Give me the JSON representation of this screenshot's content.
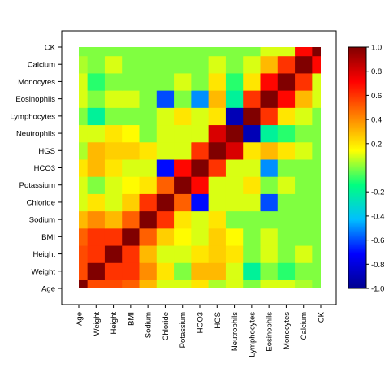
{
  "chart_data": {
    "type": "heatmap",
    "title": "",
    "xlabel": "",
    "ylabel": "",
    "variables": [
      "Age",
      "Weight",
      "Height",
      "BMI",
      "Sodium",
      "Chloride",
      "Potassium",
      "HCO3",
      "HGS",
      "Neutrophils",
      "Lymphocytes",
      "Eosinophils",
      "Monocytes",
      "Calcium",
      "CK"
    ],
    "x_tick_labels": [
      "Age",
      "Weight",
      "Height",
      "BMI",
      "Sodium",
      "Chloride",
      "Potassium",
      "HCO3",
      "HGS",
      "Neutrophils",
      "Lymphocytes",
      "Eosinophils",
      "Monocytes",
      "Calcium",
      "CK"
    ],
    "y_tick_labels": [
      "Age",
      "Weight",
      "Height",
      "BMI",
      "Sodium",
      "Chloride",
      "Potassium",
      "HCO3",
      "HGS",
      "Neutrophils",
      "Lymphocytes",
      "Eosinophils",
      "Monocytes",
      "Calcium",
      "CK"
    ],
    "matrix": [
      [
        1.0,
        0.55,
        0.55,
        0.5,
        0.3,
        0.1,
        0.1,
        0.2,
        0.05,
        0.1,
        0.0,
        0.1,
        0.1,
        0.05,
        0.0
      ],
      [
        0.55,
        1.0,
        0.6,
        0.6,
        0.4,
        0.2,
        0.0,
        0.3,
        0.3,
        0.1,
        -0.2,
        0.0,
        -0.1,
        0.0,
        0.0
      ],
      [
        0.55,
        0.6,
        1.0,
        0.6,
        0.3,
        0.1,
        0.1,
        0.2,
        0.25,
        0.2,
        0.0,
        0.1,
        0.0,
        0.1,
        0.0
      ],
      [
        0.5,
        0.6,
        0.6,
        1.0,
        0.5,
        0.25,
        0.15,
        0.1,
        0.25,
        0.15,
        0.0,
        0.1,
        0.0,
        0.0,
        0.0
      ],
      [
        0.3,
        0.4,
        0.3,
        0.5,
        1.0,
        0.6,
        0.2,
        0.1,
        0.2,
        0.0,
        0.0,
        0.0,
        0.0,
        0.0,
        0.0
      ],
      [
        0.1,
        0.2,
        0.1,
        0.25,
        0.6,
        1.0,
        0.5,
        -0.7,
        0.1,
        0.1,
        0.1,
        -0.6,
        0.0,
        0.0,
        0.0
      ],
      [
        0.1,
        0.0,
        0.1,
        0.15,
        0.2,
        0.5,
        1.0,
        0.7,
        0.1,
        0.1,
        0.2,
        0.0,
        0.1,
        0.0,
        0.0
      ],
      [
        0.2,
        0.3,
        0.2,
        0.1,
        0.1,
        -0.7,
        0.7,
        1.0,
        0.6,
        0.1,
        0.1,
        -0.5,
        0.0,
        0.0,
        0.0
      ],
      [
        0.05,
        0.3,
        0.25,
        0.25,
        0.2,
        0.1,
        0.1,
        0.6,
        1.0,
        0.8,
        0.2,
        0.3,
        0.2,
        0.1,
        0.0
      ],
      [
        0.1,
        0.1,
        0.2,
        0.15,
        0.0,
        0.1,
        0.1,
        0.1,
        0.8,
        1.0,
        -0.9,
        -0.2,
        -0.1,
        0.0,
        0.0
      ],
      [
        0.0,
        -0.2,
        0.0,
        0.0,
        0.0,
        0.1,
        0.2,
        0.1,
        0.2,
        -0.9,
        1.0,
        0.6,
        0.2,
        0.1,
        0.0
      ],
      [
        0.1,
        0.0,
        0.1,
        0.1,
        0.0,
        -0.6,
        0.0,
        -0.5,
        0.3,
        -0.2,
        0.6,
        1.0,
        0.7,
        0.3,
        0.1
      ],
      [
        0.1,
        -0.1,
        0.0,
        0.0,
        0.0,
        0.0,
        0.1,
        0.0,
        0.2,
        -0.1,
        0.2,
        0.7,
        1.0,
        0.6,
        0.1
      ],
      [
        0.05,
        0.0,
        0.1,
        0.0,
        0.0,
        0.0,
        0.0,
        0.0,
        0.1,
        0.0,
        0.1,
        0.3,
        0.6,
        1.0,
        0.7
      ],
      [
        0.0,
        0.0,
        0.0,
        0.0,
        0.0,
        0.0,
        0.0,
        0.0,
        0.0,
        0.0,
        0.0,
        0.1,
        0.1,
        0.7,
        1.0
      ]
    ],
    "colorbar": {
      "min": -1.0,
      "max": 1.0,
      "ticks": [
        "1.0",
        "0.8",
        "0.6",
        "0.4",
        "0.2",
        "-0.2",
        "-0.4",
        "-0.6",
        "-0.8",
        "-1.0"
      ],
      "tick_values": [
        1.0,
        0.8,
        0.6,
        0.4,
        0.2,
        -0.2,
        -0.4,
        -0.6,
        -0.8,
        -1.0
      ],
      "colors": [
        "#00008f",
        "#0000ff",
        "#00bfff",
        "#00ff80",
        "#ffff00",
        "#ff8000",
        "#ff0000",
        "#800000"
      ]
    },
    "grid": false,
    "legend": "colorbar-right"
  }
}
